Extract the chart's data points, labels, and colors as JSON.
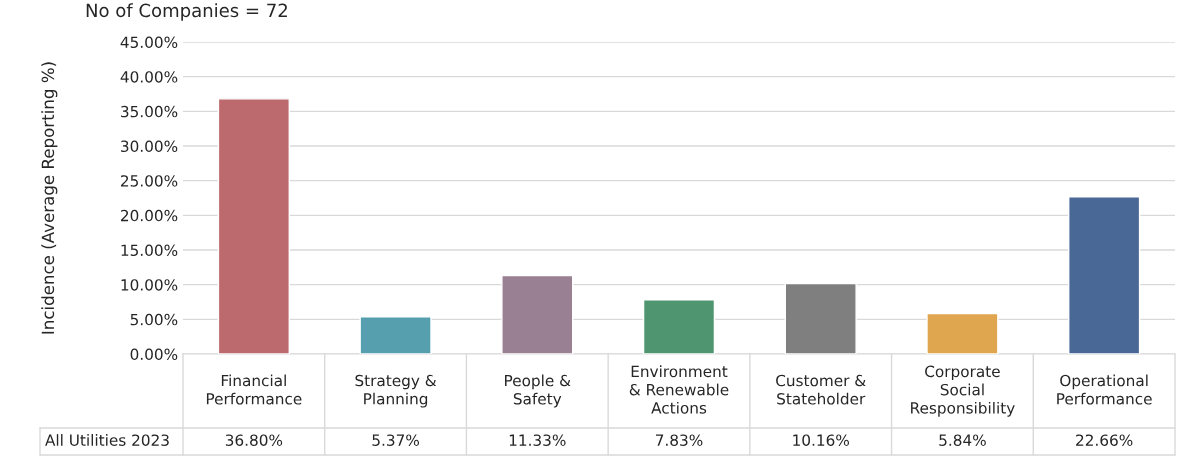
{
  "chart_data": {
    "type": "bar",
    "title": "No of Companies = 72",
    "ylabel": "Incidence (Average Reporting %)",
    "categories": [
      "Financial\nPerformance",
      "Strategy &\nPlanning",
      "People &\nSafety",
      "Environment\n& Renewable\nActions",
      "Customer &\nStateholder",
      "Corporate\nSocial\nResponsibility",
      "Operational\nPerformance"
    ],
    "series": [
      {
        "name": "All Utilities 2023",
        "colors": [
          "#bd6a6e",
          "#559fae",
          "#9a8093",
          "#4f9670",
          "#7f7f7f",
          "#e0a54f",
          "#4a6896"
        ],
        "values": [
          36.8,
          5.37,
          11.33,
          7.83,
          10.16,
          5.84,
          22.66
        ],
        "value_labels": [
          "36.80%",
          "5.37%",
          "11.33%",
          "7.83%",
          "10.16%",
          "5.84%",
          "22.66%"
        ]
      }
    ],
    "ylim": [
      0,
      45
    ],
    "yticks": [
      {
        "value": 0,
        "label": "0.00%"
      },
      {
        "value": 5,
        "label": "5.00%"
      },
      {
        "value": 10,
        "label": "10.00%"
      },
      {
        "value": 15,
        "label": "15.00%"
      },
      {
        "value": 20,
        "label": "20.00%"
      },
      {
        "value": 25,
        "label": "25.00%"
      },
      {
        "value": 30,
        "label": "30.00%"
      },
      {
        "value": 35,
        "label": "35.00%"
      },
      {
        "value": 40,
        "label": "40.00%"
      },
      {
        "value": 45,
        "label": "45.00%"
      }
    ],
    "grid": "y"
  }
}
